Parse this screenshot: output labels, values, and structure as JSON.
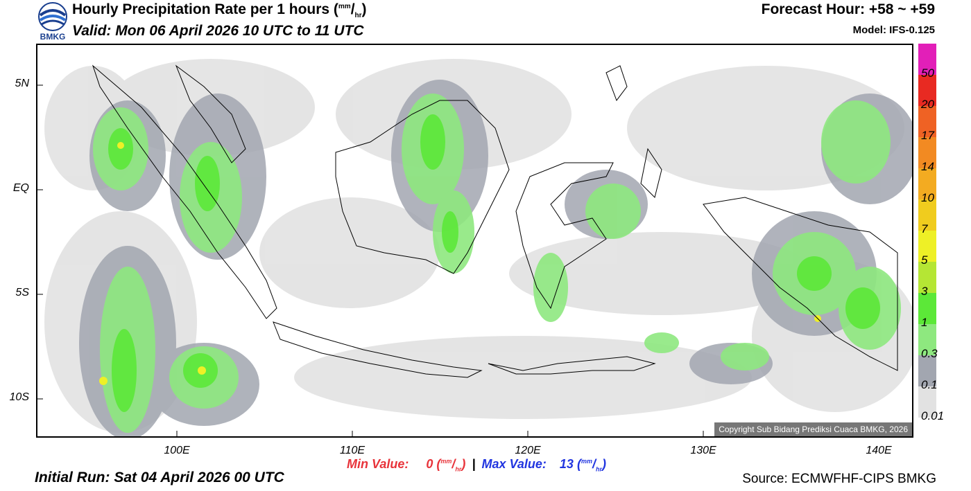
{
  "header": {
    "title_main": "Hourly Precipitation Rate per 1 hours (",
    "title_unit_top": "mm",
    "title_unit_sep": "/",
    "title_unit_bottom": "hr",
    "title_close": ")",
    "valid": "Valid: Mon 06 April 2026 10 UTC to 11 UTC",
    "forecast_hour": "Forecast Hour: +58 ~ +59",
    "model": "Model: IFS-0.125",
    "logo_text": "BMKG"
  },
  "map": {
    "lat_labels": [
      "5N",
      "EQ",
      "5S",
      "10S"
    ],
    "lon_labels": [
      "100E",
      "110E",
      "120E",
      "130E",
      "140E"
    ],
    "copyright": "Copyright Sub Bidang Prediksi Cuaca BMKG, 2026"
  },
  "colorbar": {
    "labels": [
      "50",
      "20",
      "17",
      "14",
      "10",
      "7",
      "5",
      "3",
      "1",
      "0.3",
      "0.1",
      "0.01"
    ],
    "colors": [
      "#e21fb8",
      "#e82a22",
      "#ef6224",
      "#f28a22",
      "#f3ab21",
      "#f0cc1e",
      "#eef026",
      "#b5e634",
      "#5ce838",
      "#8ee87f",
      "#a2a6b0",
      "#e2e2e2"
    ]
  },
  "footer": {
    "min_label": "Min Value:",
    "min_value": "0",
    "max_label": "Max Value:",
    "max_value": "13",
    "unit_top": "mm",
    "unit_bottom": "hr",
    "separator": "|",
    "initial_run": "Initial Run: Sat 04 April 2026 00 UTC",
    "source": "Source: ECMWFHF-CIPS BMKG"
  }
}
